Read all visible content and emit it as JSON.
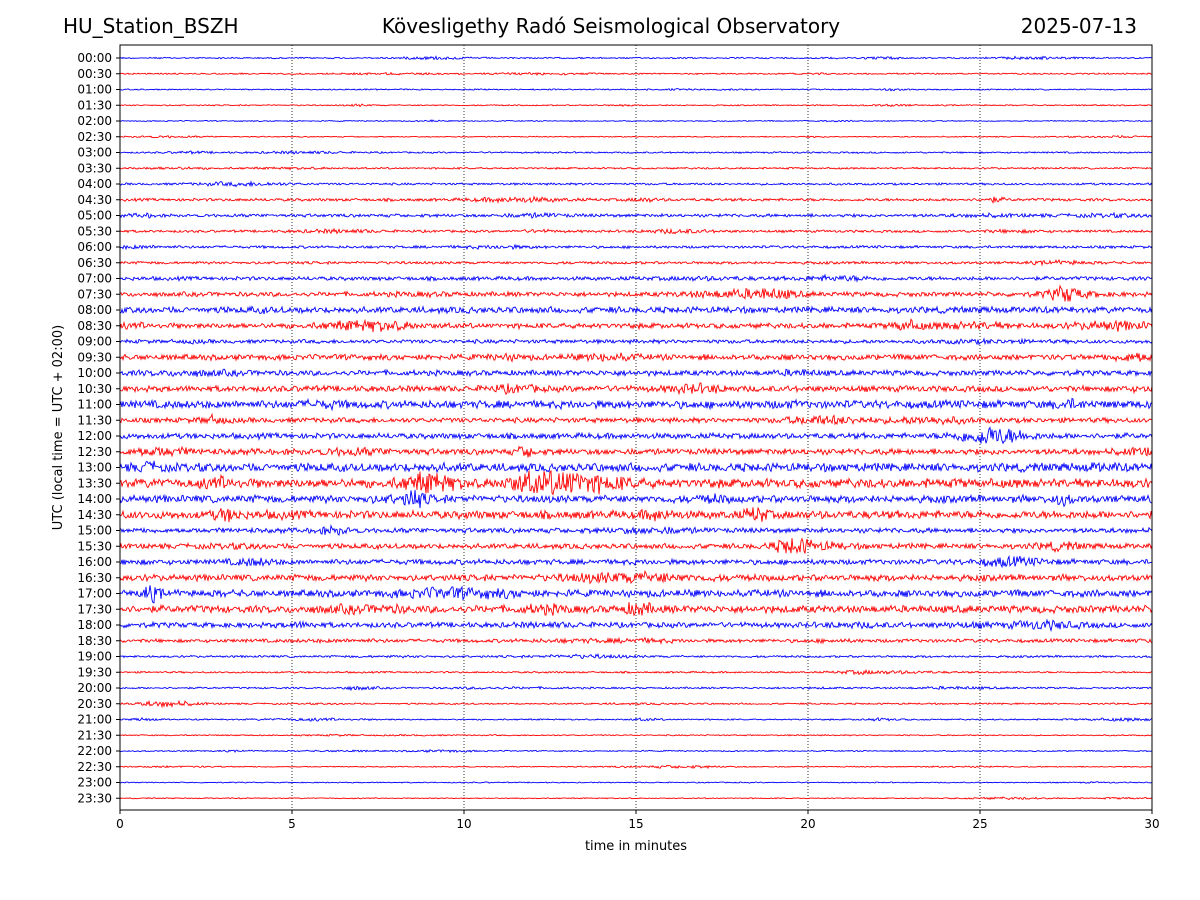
{
  "header": {
    "station": "HU_Station_BSZH",
    "title": "Kövesligethy Radó Seismological Observatory",
    "date": "2025-07-13"
  },
  "chart_data": {
    "type": "line",
    "title": "Kövesligethy Radó Seismological Observatory",
    "xlabel": "time in minutes",
    "ylabel": "UTC (local time = UTC + 02:00)",
    "xlim": [
      0,
      30
    ],
    "x_ticks": [
      0,
      5,
      10,
      15,
      20,
      25,
      30
    ],
    "grid": "vertical dotted lines at 5-minute intervals",
    "colors": [
      "#0000ff",
      "#ff0000"
    ],
    "rows": [
      {
        "label": "00:00",
        "amp": 0.8
      },
      {
        "label": "00:30",
        "amp": 0.8
      },
      {
        "label": "01:00",
        "amp": 0.7
      },
      {
        "label": "01:30",
        "amp": 0.7
      },
      {
        "label": "02:00",
        "amp": 0.6
      },
      {
        "label": "02:30",
        "amp": 0.6
      },
      {
        "label": "03:00",
        "amp": 0.9
      },
      {
        "label": "03:30",
        "amp": 1.0
      },
      {
        "label": "04:00",
        "amp": 1.2
      },
      {
        "label": "04:30",
        "amp": 1.6
      },
      {
        "label": "05:00",
        "amp": 1.8
      },
      {
        "label": "05:30",
        "amp": 1.4
      },
      {
        "label": "06:00",
        "amp": 1.5
      },
      {
        "label": "06:30",
        "amp": 1.5
      },
      {
        "label": "07:00",
        "amp": 2.2
      },
      {
        "label": "07:30",
        "amp": 2.6
      },
      {
        "label": "08:00",
        "amp": 3.6
      },
      {
        "label": "08:30",
        "amp": 3.0
      },
      {
        "label": "09:00",
        "amp": 2.2
      },
      {
        "label": "09:30",
        "amp": 3.2
      },
      {
        "label": "10:00",
        "amp": 3.0
      },
      {
        "label": "10:30",
        "amp": 3.4
      },
      {
        "label": "11:00",
        "amp": 4.5
      },
      {
        "label": "11:30",
        "amp": 2.8
      },
      {
        "label": "12:00",
        "amp": 3.2
      },
      {
        "label": "12:30",
        "amp": 3.4
      },
      {
        "label": "13:00",
        "amp": 4.8
      },
      {
        "label": "13:30",
        "amp": 5.2
      },
      {
        "label": "14:00",
        "amp": 4.2
      },
      {
        "label": "14:30",
        "amp": 4.6
      },
      {
        "label": "15:00",
        "amp": 2.8
      },
      {
        "label": "15:30",
        "amp": 3.0
      },
      {
        "label": "16:00",
        "amp": 3.0
      },
      {
        "label": "16:30",
        "amp": 3.6
      },
      {
        "label": "17:00",
        "amp": 4.0
      },
      {
        "label": "17:30",
        "amp": 4.2
      },
      {
        "label": "18:00",
        "amp": 3.0
      },
      {
        "label": "18:30",
        "amp": 2.0
      },
      {
        "label": "19:00",
        "amp": 1.2
      },
      {
        "label": "19:30",
        "amp": 1.0
      },
      {
        "label": "20:00",
        "amp": 1.0
      },
      {
        "label": "20:30",
        "amp": 0.9
      },
      {
        "label": "21:00",
        "amp": 0.8
      },
      {
        "label": "21:30",
        "amp": 0.7
      },
      {
        "label": "22:00",
        "amp": 0.7
      },
      {
        "label": "22:30",
        "amp": 0.6
      },
      {
        "label": "23:00",
        "amp": 0.6
      },
      {
        "label": "23:30",
        "amp": 0.6
      }
    ]
  }
}
